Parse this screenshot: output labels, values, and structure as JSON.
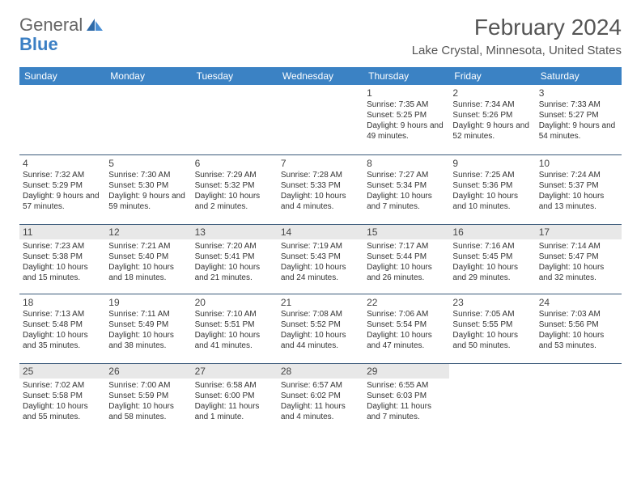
{
  "logo": {
    "text1": "General",
    "text2": "Blue"
  },
  "header": {
    "month": "February 2024",
    "location": "Lake Crystal, Minnesota, United States"
  },
  "columns": [
    "Sunday",
    "Monday",
    "Tuesday",
    "Wednesday",
    "Thursday",
    "Friday",
    "Saturday"
  ],
  "colors": {
    "header_bg": "#3b82c4",
    "header_fg": "#ffffff",
    "rule": "#3b5a7a",
    "shade": "#e8e8e8",
    "logo_gray": "#666666",
    "logo_blue": "#3b7fc4",
    "text": "#333333"
  },
  "weeks": [
    {
      "shaded": false,
      "days": [
        null,
        null,
        null,
        null,
        {
          "n": "1",
          "sr": "Sunrise: 7:35 AM",
          "ss": "Sunset: 5:25 PM",
          "dl": "Daylight: 9 hours and 49 minutes."
        },
        {
          "n": "2",
          "sr": "Sunrise: 7:34 AM",
          "ss": "Sunset: 5:26 PM",
          "dl": "Daylight: 9 hours and 52 minutes."
        },
        {
          "n": "3",
          "sr": "Sunrise: 7:33 AM",
          "ss": "Sunset: 5:27 PM",
          "dl": "Daylight: 9 hours and 54 minutes."
        }
      ]
    },
    {
      "shaded": false,
      "days": [
        {
          "n": "4",
          "sr": "Sunrise: 7:32 AM",
          "ss": "Sunset: 5:29 PM",
          "dl": "Daylight: 9 hours and 57 minutes."
        },
        {
          "n": "5",
          "sr": "Sunrise: 7:30 AM",
          "ss": "Sunset: 5:30 PM",
          "dl": "Daylight: 9 hours and 59 minutes."
        },
        {
          "n": "6",
          "sr": "Sunrise: 7:29 AM",
          "ss": "Sunset: 5:32 PM",
          "dl": "Daylight: 10 hours and 2 minutes."
        },
        {
          "n": "7",
          "sr": "Sunrise: 7:28 AM",
          "ss": "Sunset: 5:33 PM",
          "dl": "Daylight: 10 hours and 4 minutes."
        },
        {
          "n": "8",
          "sr": "Sunrise: 7:27 AM",
          "ss": "Sunset: 5:34 PM",
          "dl": "Daylight: 10 hours and 7 minutes."
        },
        {
          "n": "9",
          "sr": "Sunrise: 7:25 AM",
          "ss": "Sunset: 5:36 PM",
          "dl": "Daylight: 10 hours and 10 minutes."
        },
        {
          "n": "10",
          "sr": "Sunrise: 7:24 AM",
          "ss": "Sunset: 5:37 PM",
          "dl": "Daylight: 10 hours and 13 minutes."
        }
      ]
    },
    {
      "shaded": true,
      "days": [
        {
          "n": "11",
          "sr": "Sunrise: 7:23 AM",
          "ss": "Sunset: 5:38 PM",
          "dl": "Daylight: 10 hours and 15 minutes."
        },
        {
          "n": "12",
          "sr": "Sunrise: 7:21 AM",
          "ss": "Sunset: 5:40 PM",
          "dl": "Daylight: 10 hours and 18 minutes."
        },
        {
          "n": "13",
          "sr": "Sunrise: 7:20 AM",
          "ss": "Sunset: 5:41 PM",
          "dl": "Daylight: 10 hours and 21 minutes."
        },
        {
          "n": "14",
          "sr": "Sunrise: 7:19 AM",
          "ss": "Sunset: 5:43 PM",
          "dl": "Daylight: 10 hours and 24 minutes."
        },
        {
          "n": "15",
          "sr": "Sunrise: 7:17 AM",
          "ss": "Sunset: 5:44 PM",
          "dl": "Daylight: 10 hours and 26 minutes."
        },
        {
          "n": "16",
          "sr": "Sunrise: 7:16 AM",
          "ss": "Sunset: 5:45 PM",
          "dl": "Daylight: 10 hours and 29 minutes."
        },
        {
          "n": "17",
          "sr": "Sunrise: 7:14 AM",
          "ss": "Sunset: 5:47 PM",
          "dl": "Daylight: 10 hours and 32 minutes."
        }
      ]
    },
    {
      "shaded": false,
      "days": [
        {
          "n": "18",
          "sr": "Sunrise: 7:13 AM",
          "ss": "Sunset: 5:48 PM",
          "dl": "Daylight: 10 hours and 35 minutes."
        },
        {
          "n": "19",
          "sr": "Sunrise: 7:11 AM",
          "ss": "Sunset: 5:49 PM",
          "dl": "Daylight: 10 hours and 38 minutes."
        },
        {
          "n": "20",
          "sr": "Sunrise: 7:10 AM",
          "ss": "Sunset: 5:51 PM",
          "dl": "Daylight: 10 hours and 41 minutes."
        },
        {
          "n": "21",
          "sr": "Sunrise: 7:08 AM",
          "ss": "Sunset: 5:52 PM",
          "dl": "Daylight: 10 hours and 44 minutes."
        },
        {
          "n": "22",
          "sr": "Sunrise: 7:06 AM",
          "ss": "Sunset: 5:54 PM",
          "dl": "Daylight: 10 hours and 47 minutes."
        },
        {
          "n": "23",
          "sr": "Sunrise: 7:05 AM",
          "ss": "Sunset: 5:55 PM",
          "dl": "Daylight: 10 hours and 50 minutes."
        },
        {
          "n": "24",
          "sr": "Sunrise: 7:03 AM",
          "ss": "Sunset: 5:56 PM",
          "dl": "Daylight: 10 hours and 53 minutes."
        }
      ]
    },
    {
      "shaded": true,
      "days": [
        {
          "n": "25",
          "sr": "Sunrise: 7:02 AM",
          "ss": "Sunset: 5:58 PM",
          "dl": "Daylight: 10 hours and 55 minutes."
        },
        {
          "n": "26",
          "sr": "Sunrise: 7:00 AM",
          "ss": "Sunset: 5:59 PM",
          "dl": "Daylight: 10 hours and 58 minutes."
        },
        {
          "n": "27",
          "sr": "Sunrise: 6:58 AM",
          "ss": "Sunset: 6:00 PM",
          "dl": "Daylight: 11 hours and 1 minute."
        },
        {
          "n": "28",
          "sr": "Sunrise: 6:57 AM",
          "ss": "Sunset: 6:02 PM",
          "dl": "Daylight: 11 hours and 4 minutes."
        },
        {
          "n": "29",
          "sr": "Sunrise: 6:55 AM",
          "ss": "Sunset: 6:03 PM",
          "dl": "Daylight: 11 hours and 7 minutes."
        },
        null,
        null
      ]
    }
  ]
}
